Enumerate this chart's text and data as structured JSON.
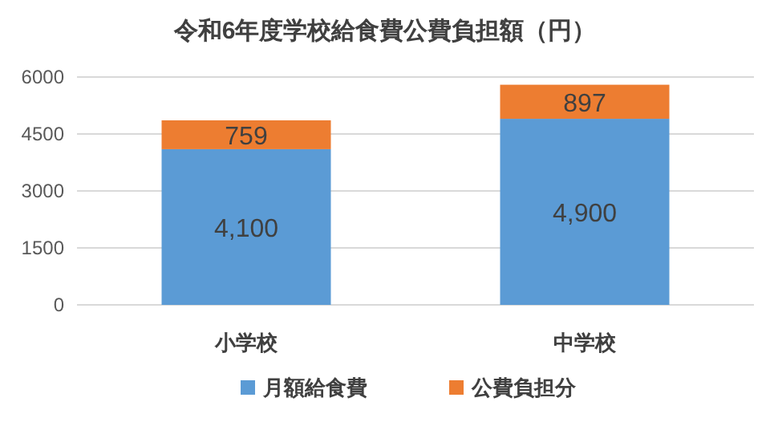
{
  "chart_data": {
    "type": "bar",
    "title": "令和6年度学校給食費公費負担額（円）",
    "categories": [
      "小学校",
      "中学校"
    ],
    "stacked": true,
    "ylim": [
      0,
      6000
    ],
    "yticks": [
      0,
      1500,
      3000,
      4500,
      6000
    ],
    "grid": "y",
    "legend": "bottom",
    "series": [
      {
        "name": "月額給食費",
        "color": "#5b9bd5",
        "values": [
          4100,
          4900
        ],
        "value_labels": [
          "4,100",
          "4,900"
        ]
      },
      {
        "name": "公費負担分",
        "color": "#ed7d31",
        "values": [
          759,
          897
        ],
        "value_labels": [
          "759",
          "897"
        ]
      }
    ]
  }
}
